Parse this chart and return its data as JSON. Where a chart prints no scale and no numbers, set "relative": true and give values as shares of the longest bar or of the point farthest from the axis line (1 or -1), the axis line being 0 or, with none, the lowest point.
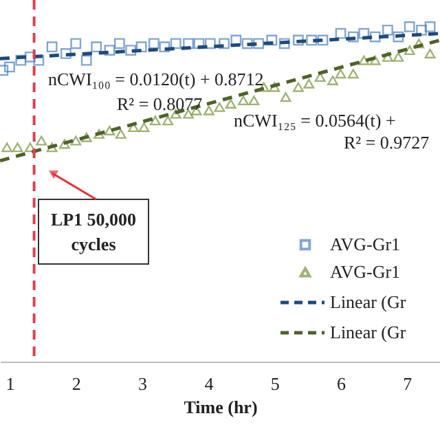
{
  "chart_data": {
    "type": "scatter",
    "relative": true,
    "xlabel": "Time (hr)",
    "xlim": [
      0.855,
      7.5
    ],
    "xticks": [
      1,
      2,
      3,
      4,
      5,
      6,
      7
    ],
    "grid": false,
    "legend": "bottom right",
    "series": [
      {
        "name": "AVG-Gr1",
        "marker": "square",
        "color": "#4f81bd",
        "x": [
          0.9,
          1.0,
          1.17,
          1.31,
          1.44,
          1.64,
          1.85,
          2.0,
          2.16,
          2.31,
          2.51,
          2.66,
          2.83,
          2.99,
          3.18,
          3.34,
          3.51,
          3.7,
          3.86,
          4.03,
          4.24,
          4.42,
          4.59,
          4.76,
          4.96,
          5.15,
          5.36,
          5.56,
          5.73,
          6.0,
          6.19,
          6.35,
          6.52,
          6.71,
          6.87,
          7.04,
          7.22,
          7.35
        ],
        "values": [
          0.87,
          0.88,
          0.9,
          0.91,
          0.9,
          0.94,
          0.92,
          0.95,
          0.9,
          0.94,
          0.93,
          0.95,
          0.93,
          0.94,
          0.95,
          0.94,
          0.95,
          0.95,
          0.95,
          0.95,
          0.95,
          0.96,
          0.95,
          0.95,
          0.96,
          0.95,
          0.96,
          0.96,
          0.96,
          0.98,
          0.97,
          0.98,
          0.97,
          0.99,
          0.97,
          1.0,
          0.99,
          1.0
        ]
      },
      {
        "name": "AVG-Gr1",
        "marker": "triangle",
        "color": "#77933c",
        "x": [
          0.96,
          1.12,
          1.31,
          1.48,
          1.64,
          1.83,
          2.0,
          2.16,
          2.35,
          2.51,
          2.68,
          2.87,
          3.03,
          3.2,
          3.39,
          3.51,
          3.7,
          3.82,
          4.01,
          4.17,
          4.34,
          4.53,
          4.69,
          4.84,
          5.0,
          5.17,
          5.36,
          5.52,
          5.69,
          5.88,
          6.0,
          6.19,
          6.35,
          6.52,
          6.71,
          6.87,
          7.04,
          7.18,
          7.35
        ],
        "values": [
          0.64,
          0.64,
          0.64,
          0.66,
          0.64,
          0.65,
          0.66,
          0.67,
          0.68,
          0.69,
          0.68,
          0.7,
          0.7,
          0.72,
          0.72,
          0.74,
          0.74,
          0.75,
          0.75,
          0.76,
          0.77,
          0.78,
          0.78,
          0.82,
          0.82,
          0.79,
          0.82,
          0.83,
          0.85,
          0.84,
          0.86,
          0.86,
          0.9,
          0.9,
          0.91,
          0.91,
          0.93,
          0.95,
          0.92
        ]
      },
      {
        "name": "Linear (Gr",
        "type": "line",
        "line_style": "dashed",
        "color": "#1f497d",
        "x": [
          0.855,
          7.5
        ],
        "values": [
          0.905,
          0.98
        ]
      },
      {
        "name": "Linear (Gr",
        "type": "line",
        "line_style": "dashed",
        "color": "#4f6228",
        "x": [
          0.855,
          7.5
        ],
        "values": [
          0.6,
          0.96
        ]
      }
    ],
    "ref_lines": [
      {
        "axis": "x",
        "value": 1.37,
        "color": "#e0404f",
        "line_style": "dashed"
      }
    ],
    "annotations": [
      "nCWI₁₀₀ = 0.0120(t) + 0.8712",
      "R² = 0.8077",
      "nCWI₁₂₅ = 0.0564(t) +",
      "R² = 0.9727",
      "LP1 50,000\ncycles"
    ]
  }
}
